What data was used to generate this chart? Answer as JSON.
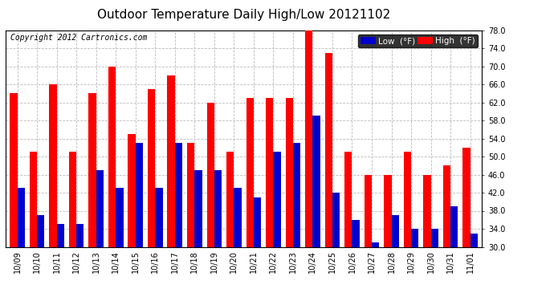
{
  "title": "Outdoor Temperature Daily High/Low 20121102",
  "copyright": "Copyright 2012 Cartronics.com",
  "legend_low": "Low  (°F)",
  "legend_high": "High  (°F)",
  "dates": [
    "10/09",
    "10/10",
    "10/11",
    "10/12",
    "10/13",
    "10/14",
    "10/15",
    "10/16",
    "10/17",
    "10/18",
    "10/19",
    "10/20",
    "10/21",
    "10/22",
    "10/23",
    "10/24",
    "10/25",
    "10/26",
    "10/27",
    "10/28",
    "10/29",
    "10/30",
    "10/31",
    "11/01"
  ],
  "high": [
    64,
    51,
    66,
    51,
    64,
    70,
    55,
    65,
    68,
    53,
    62,
    51,
    63,
    63,
    63,
    79,
    73,
    51,
    46,
    46,
    51,
    46,
    48,
    52
  ],
  "low": [
    43,
    37,
    35,
    35,
    47,
    43,
    53,
    43,
    53,
    47,
    47,
    43,
    41,
    51,
    53,
    59,
    42,
    36,
    31,
    37,
    34,
    34,
    39,
    33
  ],
  "ymin": 30.0,
  "ymax": 78.0,
  "yticks": [
    30.0,
    34.0,
    38.0,
    42.0,
    46.0,
    50.0,
    54.0,
    58.0,
    62.0,
    66.0,
    70.0,
    74.0,
    78.0
  ],
  "bar_width": 0.38,
  "high_color": "#ff0000",
  "low_color": "#0000cc",
  "bg_color": "#ffffff",
  "grid_color": "#bbbbbb",
  "title_fontsize": 11,
  "tick_fontsize": 7,
  "legend_fontsize": 7.5,
  "copyright_fontsize": 7
}
